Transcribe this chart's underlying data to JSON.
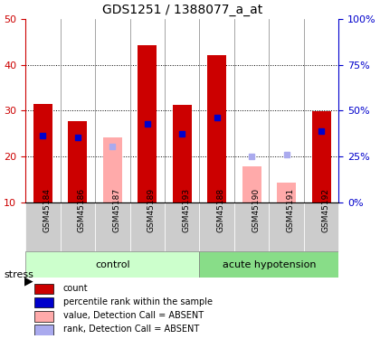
{
  "title": "GDS1251 / 1388077_a_at",
  "samples": [
    "GSM45184",
    "GSM45186",
    "GSM45187",
    "GSM45189",
    "GSM45193",
    "GSM45188",
    "GSM45190",
    "GSM45191",
    "GSM45192"
  ],
  "groups": {
    "control": [
      "GSM45184",
      "GSM45186",
      "GSM45187",
      "GSM45189",
      "GSM45193"
    ],
    "acute hypotension": [
      "GSM45188",
      "GSM45190",
      "GSM45191",
      "GSM45192"
    ]
  },
  "count_values": [
    31.5,
    27.8,
    10.0,
    44.3,
    31.2,
    42.0,
    10.0,
    10.0,
    29.8
  ],
  "percentile_rank": [
    24.5,
    24.2,
    null,
    27.2,
    25.0,
    28.5,
    null,
    null,
    25.5
  ],
  "absent_value": [
    null,
    null,
    24.3,
    null,
    null,
    null,
    18.0,
    14.3,
    null
  ],
  "absent_rank": [
    null,
    null,
    22.2,
    null,
    null,
    null,
    20.0,
    20.5,
    null
  ],
  "ylim_left": [
    10,
    50
  ],
  "ylim_right": [
    0,
    100
  ],
  "yticks_left": [
    10,
    20,
    30,
    40,
    50
  ],
  "yticks_right": [
    0,
    25,
    50,
    75,
    100
  ],
  "yticklabels_right": [
    "0%",
    "25%",
    "50%",
    "75%",
    "100%"
  ],
  "bar_width": 0.55,
  "color_red": "#cc0000",
  "color_blue": "#0000cc",
  "color_pink": "#ffaaaa",
  "color_lightblue": "#aaaaee",
  "color_group_bg_control": "#ccffcc",
  "color_group_bg_hypotension": "#88dd88",
  "color_sample_bg": "#cccccc",
  "xlabel_color": "#cc0000",
  "ylabel_right_color": "#0000cc",
  "stress_label": "stress",
  "group_label_control": "control",
  "group_label_hypotension": "acute hypotension",
  "legend_items": [
    {
      "label": "count",
      "color": "#cc0000",
      "marker": "s"
    },
    {
      "label": "percentile rank within the sample",
      "color": "#0000cc",
      "marker": "s"
    },
    {
      "label": "value, Detection Call = ABSENT",
      "color": "#ffaaaa",
      "marker": "s"
    },
    {
      "label": "rank, Detection Call = ABSENT",
      "color": "#aaaaee",
      "marker": "s"
    }
  ]
}
